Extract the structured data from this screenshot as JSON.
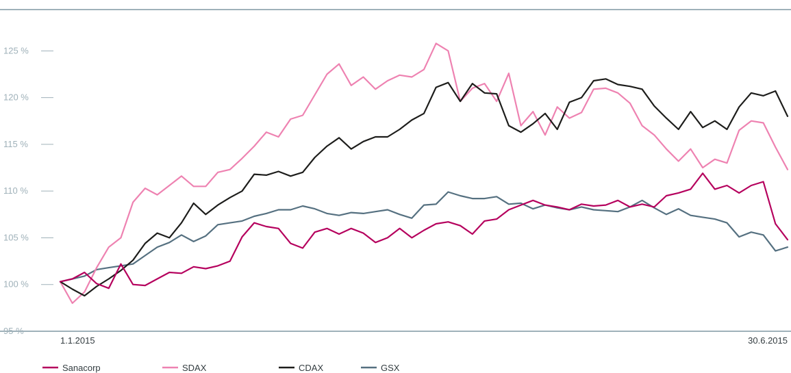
{
  "chart_data": {
    "type": "line",
    "title": "",
    "xlabel": "",
    "ylabel": "",
    "x_start_label": "1.1.2015",
    "x_end_label": "30.6.2015",
    "yticks": [
      "95 %",
      "100 %",
      "105 %",
      "110 %",
      "115 %",
      "120 %",
      "125 %"
    ],
    "ytick_values": [
      95,
      100,
      105,
      110,
      115,
      120,
      125
    ],
    "ylim": [
      95,
      127
    ],
    "grid": false,
    "legend": "bottom-left",
    "x": [
      "2015-01-01",
      "2015-01-04",
      "2015-01-07",
      "2015-01-10",
      "2015-01-13",
      "2015-01-16",
      "2015-01-19",
      "2015-01-22",
      "2015-01-25",
      "2015-01-28",
      "2015-01-31",
      "2015-02-03",
      "2015-02-06",
      "2015-02-09",
      "2015-02-12",
      "2015-02-15",
      "2015-02-18",
      "2015-02-21",
      "2015-02-24",
      "2015-02-27",
      "2015-03-02",
      "2015-03-05",
      "2015-03-08",
      "2015-03-11",
      "2015-03-14",
      "2015-03-17",
      "2015-03-20",
      "2015-03-23",
      "2015-03-26",
      "2015-03-29",
      "2015-04-01",
      "2015-04-04",
      "2015-04-07",
      "2015-04-10",
      "2015-04-13",
      "2015-04-16",
      "2015-04-19",
      "2015-04-22",
      "2015-04-25",
      "2015-04-28",
      "2015-05-01",
      "2015-05-04",
      "2015-05-07",
      "2015-05-10",
      "2015-05-13",
      "2015-05-16",
      "2015-05-19",
      "2015-05-22",
      "2015-05-25",
      "2015-05-28",
      "2015-05-31",
      "2015-06-03",
      "2015-06-06",
      "2015-06-09",
      "2015-06-12",
      "2015-06-15",
      "2015-06-18",
      "2015-06-21",
      "2015-06-24",
      "2015-06-27",
      "2015-06-30"
    ],
    "series": [
      {
        "name": "Sanacorp",
        "color": "#b5005d",
        "values": [
          100.3,
          100.6,
          101.3,
          100.1,
          99.6,
          102.2,
          100.0,
          99.9,
          100.6,
          101.3,
          101.2,
          101.9,
          101.7,
          102.0,
          102.5,
          105.1,
          106.6,
          106.2,
          106.0,
          104.4,
          103.9,
          105.6,
          106.0,
          105.4,
          106.0,
          105.5,
          104.5,
          105.0,
          106.0,
          105.0,
          105.8,
          106.5,
          106.7,
          106.3,
          105.4,
          106.8,
          107.0,
          108.0,
          108.5,
          109.0,
          108.5,
          108.3,
          108.0,
          108.6,
          108.4,
          108.5,
          109.0,
          108.3,
          108.6,
          108.3,
          109.5,
          109.8,
          110.2,
          111.9,
          110.2,
          110.6,
          109.8,
          110.6,
          111.0,
          106.5,
          104.8
        ]
      },
      {
        "name": "SDAX",
        "color": "#ee82b1",
        "values": [
          100.3,
          98.0,
          99.2,
          101.8,
          104.0,
          105.0,
          108.8,
          110.3,
          109.6,
          110.6,
          111.6,
          110.5,
          110.5,
          112.0,
          112.3,
          113.5,
          114.8,
          116.3,
          115.8,
          117.7,
          118.1,
          120.3,
          122.5,
          123.6,
          121.3,
          122.2,
          120.9,
          121.8,
          122.4,
          122.2,
          123.0,
          125.8,
          125.0,
          119.6,
          121.0,
          121.5,
          119.6,
          122.6,
          117.0,
          118.5,
          116.0,
          119.0,
          117.8,
          118.4,
          120.9,
          121.0,
          120.5,
          119.4,
          117.0,
          116.0,
          114.5,
          113.2,
          114.5,
          112.5,
          113.4,
          113.0,
          116.5,
          117.5,
          117.3,
          114.7,
          112.3
        ]
      },
      {
        "name": "CDAX",
        "color": "#1d1d1b",
        "values": [
          100.3,
          99.5,
          98.8,
          99.8,
          100.6,
          101.5,
          102.6,
          104.4,
          105.5,
          105.0,
          106.6,
          108.7,
          107.5,
          108.5,
          109.3,
          110.0,
          111.8,
          111.7,
          112.1,
          111.6,
          112.0,
          113.6,
          114.8,
          115.7,
          114.5,
          115.3,
          115.8,
          115.8,
          116.6,
          117.6,
          118.3,
          121.1,
          121.6,
          119.6,
          121.5,
          120.5,
          120.4,
          117.0,
          116.3,
          117.2,
          118.3,
          116.6,
          119.5,
          120.0,
          121.8,
          122.0,
          121.4,
          121.2,
          120.9,
          119.1,
          117.8,
          116.6,
          118.5,
          116.8,
          117.5,
          116.6,
          119.0,
          120.5,
          120.2,
          120.7,
          118.0
        ]
      },
      {
        "name": "GSX",
        "color": "#557080",
        "values": [
          100.3,
          100.6,
          100.9,
          101.6,
          101.8,
          102.0,
          102.2,
          103.1,
          104.0,
          104.5,
          105.3,
          104.6,
          105.2,
          106.4,
          106.6,
          106.8,
          107.3,
          107.6,
          108.0,
          108.0,
          108.4,
          108.1,
          107.6,
          107.4,
          107.7,
          107.6,
          107.8,
          108.0,
          107.5,
          107.1,
          108.5,
          108.6,
          109.9,
          109.5,
          109.2,
          109.2,
          109.4,
          108.6,
          108.7,
          108.1,
          108.5,
          108.2,
          108.0,
          108.3,
          108.0,
          107.9,
          107.8,
          108.3,
          109.0,
          108.2,
          107.5,
          108.1,
          107.4,
          107.2,
          107.0,
          106.6,
          105.1,
          105.6,
          105.3,
          103.6,
          104.0
        ]
      }
    ]
  }
}
